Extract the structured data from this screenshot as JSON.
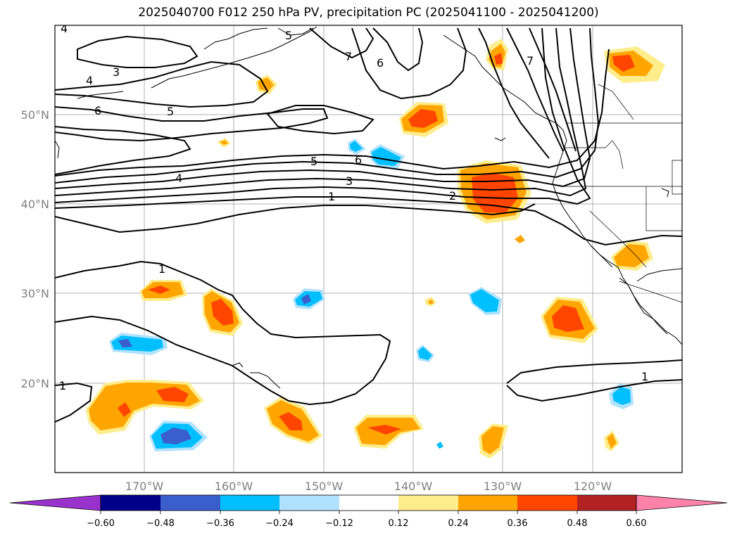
{
  "title": "2025040700 F012 250 hPa PV, precipitation PC (2025041100 - 2025041200)",
  "map": {
    "lon_range": [
      -180,
      -110
    ],
    "lat_range": [
      10,
      60
    ],
    "lat_labels": [
      "50°N",
      "40°N",
      "30°N",
      "20°N"
    ],
    "lon_labels": [
      "170°W",
      "160°W",
      "150°W",
      "140°W",
      "130°W",
      "120°W"
    ],
    "pv_contour_labels": [
      "4",
      "3",
      "4",
      "5",
      "6",
      "7",
      "6",
      "7",
      "5",
      "6",
      "5",
      "4",
      "3",
      "1",
      "2",
      "1",
      "1",
      "1"
    ]
  },
  "colorbar": {
    "ticks": [
      "−0.60",
      "−0.48",
      "−0.36",
      "−0.24",
      "−0.12",
      "0.12",
      "0.24",
      "0.36",
      "0.48",
      "0.60"
    ],
    "colors": [
      "#9932cc",
      "#00008b",
      "#3a5fcd",
      "#00bfff",
      "#b0e2ff",
      "#ffffff",
      "#ffec8b",
      "#ffa500",
      "#ff4500",
      "#b22222",
      "#ff82ab"
    ]
  }
}
